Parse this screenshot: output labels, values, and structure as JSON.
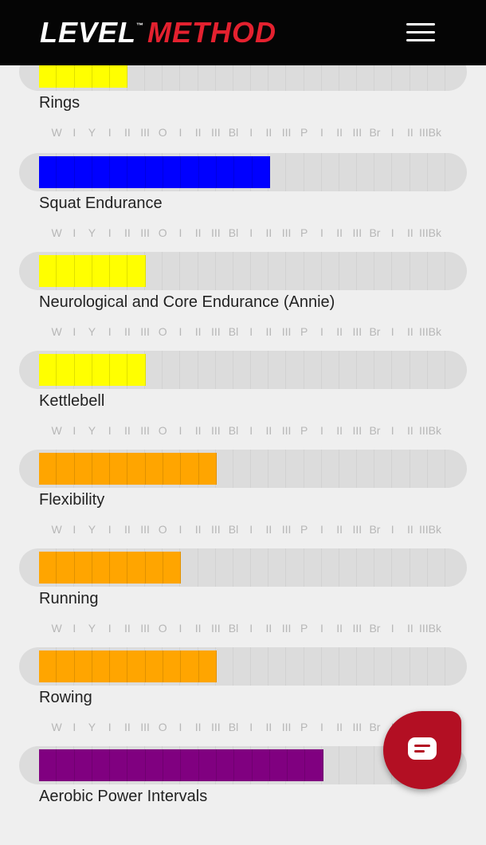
{
  "header": {
    "logo_word1": "LEVEL",
    "logo_word2": "METHOD",
    "menu_icon": "hamburger-menu-icon"
  },
  "level_labels": [
    "W",
    "I",
    "Y",
    "I",
    "II",
    "III",
    "O",
    "I",
    "II",
    "III",
    "Bl",
    "I",
    "II",
    "III",
    "P",
    "I",
    "II",
    "III",
    "Br",
    "I",
    "II",
    "IIIBk"
  ],
  "total_levels": 23,
  "skills": [
    {
      "name": "Rings",
      "level": 5,
      "color": "#ffff00"
    },
    {
      "name": "Squat Endurance",
      "level": 13,
      "color": "#0000ff"
    },
    {
      "name": "Neurological and Core Endurance (Annie)",
      "level": 6,
      "color": "#ffff00"
    },
    {
      "name": "Kettlebell",
      "level": 6,
      "color": "#ffff00"
    },
    {
      "name": "Flexibility",
      "level": 10,
      "color": "#ffa500"
    },
    {
      "name": "Running",
      "level": 8,
      "color": "#ffa500"
    },
    {
      "name": "Rowing",
      "level": 10,
      "color": "#ffa500"
    },
    {
      "name": "Aerobic Power Intervals",
      "level": 16,
      "color": "#800080"
    }
  ],
  "chat": {
    "icon": "chat-bubble-icon"
  }
}
